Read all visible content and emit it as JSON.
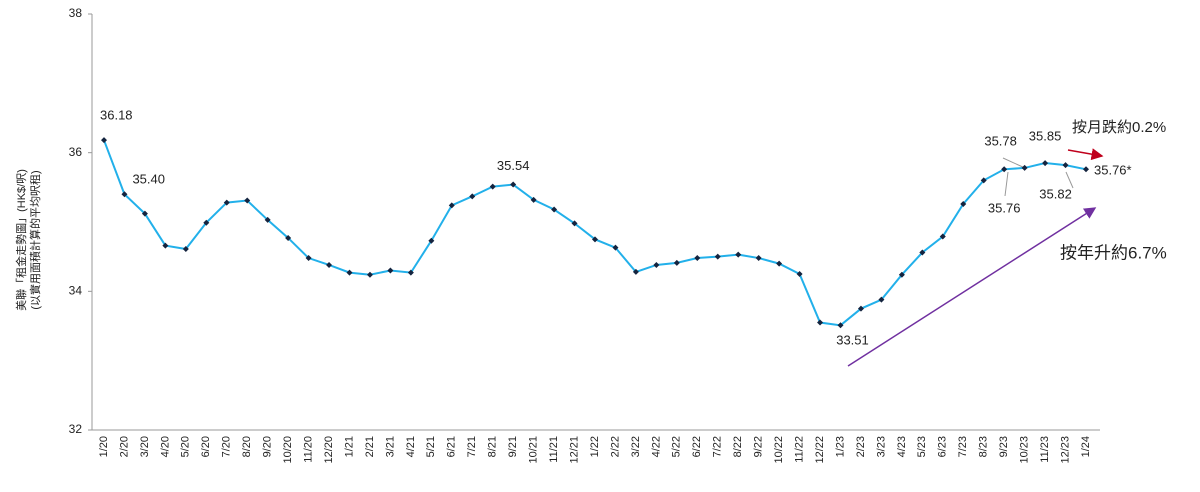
{
  "chart_data": {
    "type": "line",
    "y_axis_label": [
      "美聯「租金走勢圖」(HK$/呎)",
      "(以實用面積計算的平均呎租)"
    ],
    "categories": [
      "1/20",
      "2/20",
      "3/20",
      "4/20",
      "5/20",
      "6/20",
      "7/20",
      "8/20",
      "9/20",
      "10/20",
      "11/20",
      "12/20",
      "1/21",
      "2/21",
      "3/21",
      "4/21",
      "5/21",
      "6/21",
      "7/21",
      "8/21",
      "9/21",
      "10/21",
      "11/21",
      "12/21",
      "1/22",
      "2/22",
      "3/22",
      "4/22",
      "5/22",
      "6/22",
      "7/22",
      "8/22",
      "9/22",
      "10/22",
      "11/22",
      "12/22",
      "1/23",
      "2/23",
      "3/23",
      "4/23",
      "5/23",
      "6/23",
      "7/23",
      "8/23",
      "9/23",
      "10/23",
      "11/23",
      "12/23",
      "1/24"
    ],
    "series": [
      {
        "color": "#22b0ea",
        "marker_color": "#14243f",
        "values": [
          36.18,
          35.4,
          35.12,
          34.66,
          34.61,
          34.99,
          35.28,
          35.31,
          35.03,
          34.77,
          34.48,
          34.38,
          34.27,
          34.24,
          34.3,
          34.27,
          34.73,
          35.24,
          35.37,
          35.51,
          35.54,
          35.32,
          35.18,
          34.98,
          34.75,
          34.63,
          34.28,
          34.38,
          34.41,
          34.48,
          34.5,
          34.53,
          34.48,
          34.4,
          34.25,
          33.55,
          33.51,
          33.75,
          33.88,
          34.24,
          34.56,
          34.79,
          35.26,
          35.6,
          35.76,
          35.78,
          35.85,
          35.82,
          35.76
        ],
        "value_labels": [
          "36.18",
          "35.40",
          null,
          null,
          null,
          null,
          null,
          null,
          null,
          null,
          null,
          null,
          null,
          null,
          null,
          null,
          null,
          null,
          null,
          null,
          "35.54",
          null,
          null,
          null,
          null,
          null,
          null,
          null,
          null,
          null,
          null,
          null,
          null,
          null,
          null,
          null,
          "33.51",
          null,
          null,
          null,
          null,
          null,
          null,
          null,
          "35.76",
          "35.78",
          "35.85",
          "35.82",
          "35.76*"
        ]
      }
    ],
    "ylim": [
      32,
      38
    ],
    "yticks": [
      32,
      34,
      36,
      38
    ],
    "annotations": [
      {
        "text": "按月跌約0.2%",
        "color": "#c0001c"
      },
      {
        "text": "按年升約6.7%",
        "color": "#7030a0"
      }
    ]
  }
}
